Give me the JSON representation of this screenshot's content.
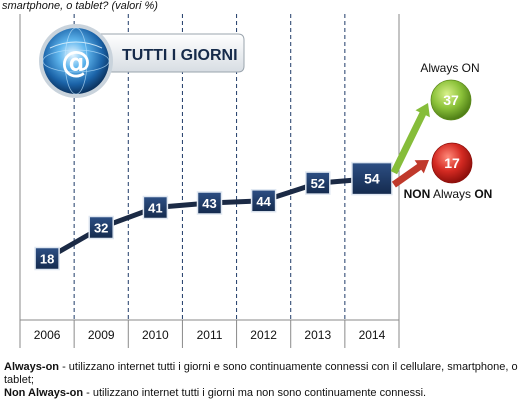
{
  "subtitle": "smartphone, o tablet? (valori %)",
  "badge_title": "TUTTI I GIORNI",
  "globe_icon": "at-sign-globe-icon",
  "chart_data": {
    "type": "line",
    "categories": [
      "2006",
      "2009",
      "2010",
      "2011",
      "2012",
      "2013",
      "2014"
    ],
    "series": [
      {
        "values": [
          18,
          32,
          41,
          43,
          44,
          52,
          54
        ]
      }
    ],
    "ylim": [
      0,
      100
    ],
    "grid": "vertical-dashed",
    "line_color": "#1b2a45",
    "marker_color": "#1f3b68"
  },
  "split": {
    "always_on": {
      "label": "Always ON",
      "value": 37,
      "color": "#7cb22b",
      "arrow_color": "#86bd3a"
    },
    "non_always_on": {
      "label_bold": "NON",
      "label_rest": "Always",
      "label_bold2": "ON",
      "value": 17,
      "color": "#cc2222",
      "arrow_color": "#c0392b"
    }
  },
  "notes": {
    "always_on_term": "Always-on",
    "always_on_text": " - utilizzano internet tutti i giorni e sono continuamente connessi con il cellulare, smartphone, o tablet;",
    "non_always_on_term": "Non Always-on",
    "non_always_on_text": " - utilizzano internet tutti i giorni ma non sono continuamente connessi."
  }
}
